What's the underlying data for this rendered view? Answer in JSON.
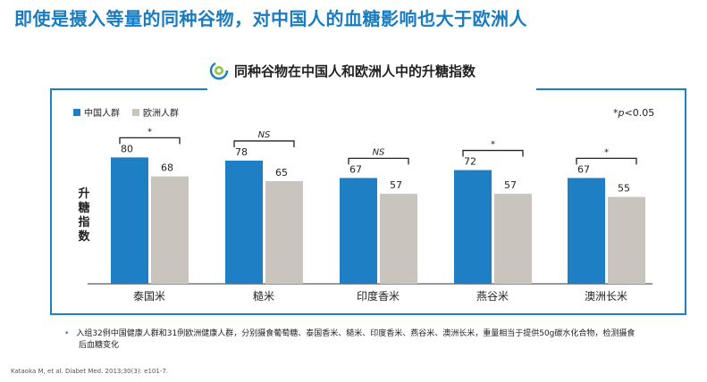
{
  "headline": "即使是摄入等量的同种谷物，对中国人的血糖影响也大于欧洲人",
  "chart_data": {
    "type": "bar",
    "title": "同种谷物在中国人和欧洲人中的升糖指数",
    "categories": [
      "泰国米",
      "糙米",
      "印度香米",
      "燕谷米",
      "澳洲长米"
    ],
    "series": [
      {
        "name": "中国人群",
        "values": [
          80,
          78,
          67,
          72,
          67
        ],
        "color": "#1f7fc4"
      },
      {
        "name": "欧洲人群",
        "values": [
          68,
          65,
          57,
          57,
          55
        ],
        "color": "#c9c5be"
      }
    ],
    "significance": [
      "*",
      "NS",
      "NS",
      "*",
      "*"
    ],
    "ylabel_chars": [
      "升",
      "糖",
      "指",
      "数"
    ],
    "ylim": [
      0,
      100
    ],
    "legend_position": "top-left",
    "annotation": {
      "prefix": "*",
      "p": "p",
      "rest": "<0.05"
    }
  },
  "footnote_lines": [
    "入组32例中国健康人群和31例欧洲健康人群，分别摄食葡萄糖、泰国香米、糙米、印度香米、燕谷米、澳洲长米，重量相当于提供50g碳水化合物，检测摄食",
    "后血糖变化"
  ],
  "citation": "Kataoka M, et al. Diabet Med. 2013;30(3): e101-7.",
  "colors": {
    "accent": "#1f7fc4",
    "headline": "#1a7cc0",
    "grey_bar": "#c9c5be"
  },
  "icons": {
    "title_logo": "swirl-logo-icon"
  }
}
